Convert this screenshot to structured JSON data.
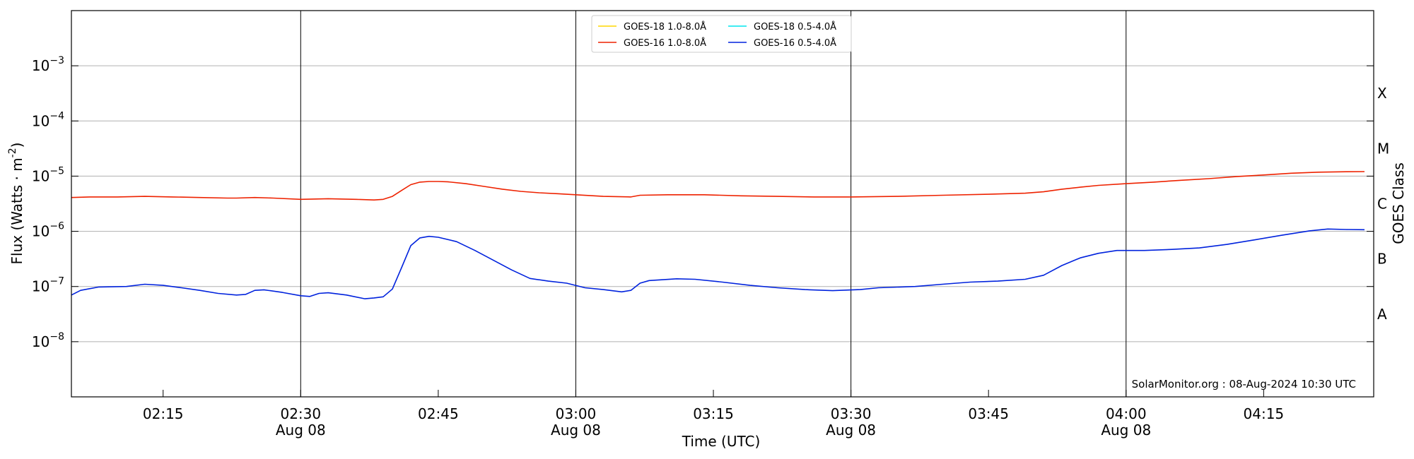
{
  "chart_data": {
    "type": "line",
    "xlabel": "Time (UTC)",
    "ylabel": "Flux (Watts · m",
    "ylabel_sup": "-2",
    "ylabel_close": ")",
    "y2label": "GOES Class",
    "yscale": "log",
    "xlim": [
      "02:05:00",
      "04:27:00"
    ],
    "ylim": [
      1e-09,
      0.01
    ],
    "grid": "horizontal",
    "legend_position": "top-center",
    "x_ticks": [
      {
        "t": "02:15",
        "label": "02:15",
        "sublabel": ""
      },
      {
        "t": "02:30",
        "label": "02:30",
        "sublabel": "Aug 08"
      },
      {
        "t": "02:45",
        "label": "02:45",
        "sublabel": ""
      },
      {
        "t": "03:00",
        "label": "03:00",
        "sublabel": "Aug 08"
      },
      {
        "t": "03:15",
        "label": "03:15",
        "sublabel": ""
      },
      {
        "t": "03:30",
        "label": "03:30",
        "sublabel": "Aug 08"
      },
      {
        "t": "03:45",
        "label": "03:45",
        "sublabel": ""
      },
      {
        "t": "04:00",
        "label": "04:00",
        "sublabel": "Aug 08"
      },
      {
        "t": "04:15",
        "label": "04:15",
        "sublabel": ""
      }
    ],
    "vertical_lines": [
      "02:30",
      "03:00",
      "03:30",
      "04:00"
    ],
    "y_ticks": [
      {
        "exp": -8,
        "base": "10",
        "sup": "−8"
      },
      {
        "exp": -7,
        "base": "10",
        "sup": "−7"
      },
      {
        "exp": -6,
        "base": "10",
        "sup": "−6"
      },
      {
        "exp": -5,
        "base": "10",
        "sup": "−5"
      },
      {
        "exp": -4,
        "base": "10",
        "sup": "−4"
      },
      {
        "exp": -3,
        "base": "10",
        "sup": "−3"
      }
    ],
    "goes_classes": [
      {
        "label": "A",
        "exp": -7.5
      },
      {
        "label": "B",
        "exp": -6.5
      },
      {
        "label": "C",
        "exp": -5.5
      },
      {
        "label": "M",
        "exp": -4.5
      },
      {
        "label": "X",
        "exp": -3.5
      }
    ],
    "legend": [
      {
        "name": "GOES-18 1.0-8.0Å",
        "color": "#ffd700"
      },
      {
        "name": "GOES-18 0.5-4.0Å",
        "color": "#00e5ee"
      },
      {
        "name": "GOES-16 1.0-8.0Å",
        "color": "#ee2200"
      },
      {
        "name": "GOES-16 0.5-4.0Å",
        "color": "#0022dd"
      }
    ],
    "annotation": "SolarMonitor.org : 08-Aug-2024 10:30 UTC",
    "series": [
      {
        "name": "GOES-16 1.0-8.0Å",
        "color": "#ee2200",
        "points": [
          [
            "02:05",
            4.1e-06
          ],
          [
            "02:07",
            4.2e-06
          ],
          [
            "02:10",
            4.2e-06
          ],
          [
            "02:13",
            4.3e-06
          ],
          [
            "02:16",
            4.2e-06
          ],
          [
            "02:19",
            4.1e-06
          ],
          [
            "02:22",
            4e-06
          ],
          [
            "02:23",
            4e-06
          ],
          [
            "02:25",
            4.1e-06
          ],
          [
            "02:27",
            4e-06
          ],
          [
            "02:30",
            3.8e-06
          ],
          [
            "02:33",
            3.9e-06
          ],
          [
            "02:36",
            3.8e-06
          ],
          [
            "02:38",
            3.7e-06
          ],
          [
            "02:39",
            3.8e-06
          ],
          [
            "02:40",
            4.3e-06
          ],
          [
            "02:41",
            5.5e-06
          ],
          [
            "02:42",
            7e-06
          ],
          [
            "02:43",
            7.8e-06
          ],
          [
            "02:44",
            8e-06
          ],
          [
            "02:45",
            8e-06
          ],
          [
            "02:46",
            7.9e-06
          ],
          [
            "02:48",
            7.3e-06
          ],
          [
            "02:50",
            6.5e-06
          ],
          [
            "02:52",
            5.8e-06
          ],
          [
            "02:54",
            5.3e-06
          ],
          [
            "02:56",
            5e-06
          ],
          [
            "02:58",
            4.8e-06
          ],
          [
            "03:00",
            4.6e-06
          ],
          [
            "03:03",
            4.3e-06
          ],
          [
            "03:06",
            4.2e-06
          ],
          [
            "03:07",
            4.5e-06
          ],
          [
            "03:10",
            4.6e-06
          ],
          [
            "03:14",
            4.6e-06
          ],
          [
            "03:18",
            4.4e-06
          ],
          [
            "03:22",
            4.3e-06
          ],
          [
            "03:26",
            4.2e-06
          ],
          [
            "03:30",
            4.2e-06
          ],
          [
            "03:35",
            4.3e-06
          ],
          [
            "03:40",
            4.5e-06
          ],
          [
            "03:45",
            4.7e-06
          ],
          [
            "03:49",
            4.9e-06
          ],
          [
            "03:51",
            5.2e-06
          ],
          [
            "03:53",
            5.8e-06
          ],
          [
            "03:55",
            6.3e-06
          ],
          [
            "03:57",
            6.8e-06
          ],
          [
            "04:00",
            7.3e-06
          ],
          [
            "04:03",
            7.8e-06
          ],
          [
            "04:06",
            8.4e-06
          ],
          [
            "04:09",
            9e-06
          ],
          [
            "04:12",
            9.8e-06
          ],
          [
            "04:15",
            1.05e-05
          ],
          [
            "04:18",
            1.13e-05
          ],
          [
            "04:21",
            1.18e-05
          ],
          [
            "04:24",
            1.2e-05
          ],
          [
            "04:26",
            1.21e-05
          ]
        ]
      },
      {
        "name": "GOES-16 0.5-4.0Å",
        "color": "#0022dd",
        "points": [
          [
            "02:05",
            7e-08
          ],
          [
            "02:06",
            8.5e-08
          ],
          [
            "02:08",
            9.8e-08
          ],
          [
            "02:11",
            1e-07
          ],
          [
            "02:13",
            1.1e-07
          ],
          [
            "02:15",
            1.05e-07
          ],
          [
            "02:17",
            9.5e-08
          ],
          [
            "02:19",
            8.5e-08
          ],
          [
            "02:21",
            7.5e-08
          ],
          [
            "02:23",
            7e-08
          ],
          [
            "02:24",
            7.2e-08
          ],
          [
            "02:25",
            8.5e-08
          ],
          [
            "02:26",
            8.7e-08
          ],
          [
            "02:28",
            7.8e-08
          ],
          [
            "02:30",
            6.8e-08
          ],
          [
            "02:31",
            6.6e-08
          ],
          [
            "02:32",
            7.5e-08
          ],
          [
            "02:33",
            7.7e-08
          ],
          [
            "02:35",
            7e-08
          ],
          [
            "02:37",
            6e-08
          ],
          [
            "02:38",
            6.2e-08
          ],
          [
            "02:39",
            6.5e-08
          ],
          [
            "02:40",
            9e-08
          ],
          [
            "02:41",
            2.2e-07
          ],
          [
            "02:42",
            5.5e-07
          ],
          [
            "02:43",
            7.6e-07
          ],
          [
            "02:44",
            8.1e-07
          ],
          [
            "02:45",
            7.8e-07
          ],
          [
            "02:47",
            6.5e-07
          ],
          [
            "02:49",
            4.5e-07
          ],
          [
            "02:51",
            3e-07
          ],
          [
            "02:53",
            2e-07
          ],
          [
            "02:55",
            1.4e-07
          ],
          [
            "02:57",
            1.25e-07
          ],
          [
            "02:59",
            1.15e-07
          ],
          [
            "03:01",
            9.5e-08
          ],
          [
            "03:03",
            8.8e-08
          ],
          [
            "03:05",
            8e-08
          ],
          [
            "03:06",
            8.5e-08
          ],
          [
            "03:07",
            1.15e-07
          ],
          [
            "03:08",
            1.28e-07
          ],
          [
            "03:11",
            1.38e-07
          ],
          [
            "03:13",
            1.35e-07
          ],
          [
            "03:16",
            1.2e-07
          ],
          [
            "03:19",
            1.05e-07
          ],
          [
            "03:22",
            9.5e-08
          ],
          [
            "03:25",
            8.8e-08
          ],
          [
            "03:28",
            8.4e-08
          ],
          [
            "03:31",
            8.8e-08
          ],
          [
            "03:33",
            9.5e-08
          ],
          [
            "03:37",
            1e-07
          ],
          [
            "03:40",
            1.1e-07
          ],
          [
            "03:43",
            1.2e-07
          ],
          [
            "03:46",
            1.25e-07
          ],
          [
            "03:49",
            1.35e-07
          ],
          [
            "03:51",
            1.6e-07
          ],
          [
            "03:53",
            2.4e-07
          ],
          [
            "03:55",
            3.3e-07
          ],
          [
            "03:57",
            4e-07
          ],
          [
            "03:59",
            4.5e-07
          ],
          [
            "04:02",
            4.5e-07
          ],
          [
            "04:05",
            4.7e-07
          ],
          [
            "04:08",
            5e-07
          ],
          [
            "04:11",
            5.8e-07
          ],
          [
            "04:14",
            7e-07
          ],
          [
            "04:17",
            8.5e-07
          ],
          [
            "04:20",
            1.02e-06
          ],
          [
            "04:22",
            1.1e-06
          ],
          [
            "04:24",
            1.08e-06
          ],
          [
            "04:26",
            1.07e-06
          ]
        ]
      }
    ]
  }
}
